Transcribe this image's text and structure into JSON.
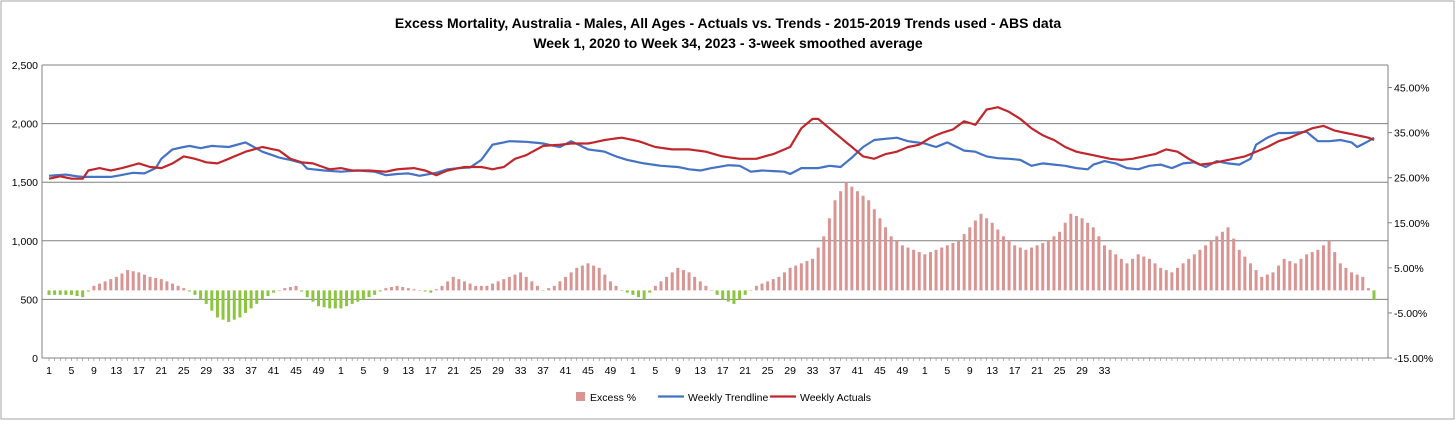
{
  "chart_data": {
    "type": "bar+line",
    "title_line1": "Excess Mortality, Australia - Males, All Ages - Actuals vs. Trends - 2015-2019 Trends used - ABS data",
    "title_line2": "Week 1, 2020 to Week 34, 2023 - 3-week smoothed average",
    "left_axis": {
      "min": 0,
      "max": 2500,
      "ticks": [
        "0",
        "500",
        "1,000",
        "1,500",
        "2,000",
        "2,500"
      ]
    },
    "right_axis": {
      "min": -15,
      "max": 50,
      "ticks": [
        "-15.00%",
        "-5.00%",
        "5.00%",
        "15.00%",
        "25.00%",
        "35.00%",
        "45.00%"
      ]
    },
    "x_tick_labels": [
      "1",
      "5",
      "9",
      "13",
      "17",
      "21",
      "25",
      "29",
      "33",
      "37",
      "41",
      "45",
      "49",
      "1",
      "5",
      "9",
      "13",
      "17",
      "21",
      "25",
      "29",
      "33",
      "37",
      "41",
      "45",
      "49",
      "1",
      "5",
      "9",
      "13",
      "17",
      "21",
      "25",
      "29",
      "33",
      "37",
      "41",
      "45",
      "49",
      "1",
      "5",
      "9",
      "13",
      "17",
      "21",
      "25",
      "29",
      "33"
    ],
    "x_tick_weeks": [
      1,
      5,
      9,
      13,
      17,
      21,
      25,
      29,
      33,
      37,
      41,
      45,
      49,
      53,
      57,
      61,
      65,
      69,
      73,
      77,
      81,
      85,
      89,
      93,
      97,
      101,
      105,
      109,
      113,
      117,
      121,
      125,
      129,
      133,
      137,
      141,
      145,
      149,
      153,
      157,
      161,
      165,
      169,
      173,
      177,
      181,
      185,
      189
    ],
    "legend": [
      {
        "label": "Excess %",
        "color": "#d99594",
        "kind": "bar"
      },
      {
        "label": "Weekly Trendline",
        "color": "#4472c4",
        "kind": "line"
      },
      {
        "label": "Weekly Actuals",
        "color": "#c0272d",
        "kind": "line"
      }
    ],
    "colors": {
      "excess_positive": "#d99594",
      "excess_negative": "#8cc53f",
      "trendline": "#4472c4",
      "actuals": "#c0272d",
      "grid": "#808080"
    },
    "trend_keypoints": [
      [
        1,
        1555
      ],
      [
        4,
        1565
      ],
      [
        6,
        1550
      ],
      [
        7,
        1545
      ],
      [
        10,
        1545
      ],
      [
        12,
        1545
      ],
      [
        16,
        1580
      ],
      [
        18,
        1575
      ],
      [
        20,
        1620
      ],
      [
        21,
        1700
      ],
      [
        23,
        1780
      ],
      [
        26,
        1810
      ],
      [
        28,
        1790
      ],
      [
        30,
        1810
      ],
      [
        33,
        1800
      ],
      [
        36,
        1840
      ],
      [
        39,
        1760
      ],
      [
        42,
        1710
      ],
      [
        44,
        1690
      ],
      [
        46,
        1665
      ],
      [
        47,
        1615
      ],
      [
        50,
        1600
      ],
      [
        53,
        1590
      ],
      [
        56,
        1600
      ],
      [
        59,
        1590
      ],
      [
        61,
        1560
      ],
      [
        63,
        1570
      ],
      [
        65,
        1575
      ],
      [
        67,
        1555
      ],
      [
        70,
        1580
      ],
      [
        72,
        1610
      ],
      [
        74,
        1620
      ],
      [
        76,
        1625
      ],
      [
        78,
        1690
      ],
      [
        80,
        1820
      ],
      [
        83,
        1850
      ],
      [
        86,
        1845
      ],
      [
        89,
        1830
      ],
      [
        92,
        1800
      ],
      [
        94,
        1850
      ],
      [
        97,
        1780
      ],
      [
        100,
        1760
      ],
      [
        102,
        1720
      ],
      [
        104,
        1690
      ],
      [
        107,
        1660
      ],
      [
        110,
        1640
      ],
      [
        113,
        1630
      ],
      [
        115,
        1610
      ],
      [
        117,
        1600
      ],
      [
        119,
        1620
      ],
      [
        122,
        1645
      ],
      [
        124,
        1640
      ],
      [
        126,
        1590
      ],
      [
        128,
        1600
      ],
      [
        132,
        1590
      ],
      [
        133,
        1570
      ],
      [
        135,
        1620
      ],
      [
        138,
        1620
      ],
      [
        140,
        1640
      ],
      [
        142,
        1630
      ],
      [
        144,
        1710
      ],
      [
        146,
        1800
      ],
      [
        148,
        1860
      ],
      [
        150,
        1870
      ],
      [
        152,
        1880
      ],
      [
        154,
        1850
      ],
      [
        157,
        1830
      ],
      [
        159,
        1800
      ],
      [
        161,
        1840
      ],
      [
        164,
        1770
      ],
      [
        166,
        1760
      ],
      [
        168,
        1720
      ],
      [
        170,
        1705
      ],
      [
        172,
        1700
      ],
      [
        174,
        1690
      ],
      [
        176,
        1640
      ],
      [
        178,
        1660
      ],
      [
        180,
        1650
      ],
      [
        182,
        1640
      ],
      [
        184,
        1620
      ],
      [
        186,
        1610
      ],
      [
        187,
        1650
      ],
      [
        189,
        1680
      ],
      [
        191,
        1660
      ],
      [
        193,
        1620
      ],
      [
        195,
        1610
      ],
      [
        197,
        1640
      ],
      [
        199,
        1650
      ],
      [
        201,
        1620
      ],
      [
        203,
        1660
      ],
      [
        205,
        1670
      ],
      [
        207,
        1630
      ],
      [
        209,
        1680
      ],
      [
        211,
        1660
      ],
      [
        213,
        1650
      ],
      [
        215,
        1700
      ],
      [
        216,
        1820
      ],
      [
        218,
        1880
      ],
      [
        220,
        1920
      ],
      [
        222,
        1920
      ],
      [
        225,
        1930
      ],
      [
        227,
        1850
      ],
      [
        229,
        1850
      ],
      [
        231,
        1860
      ],
      [
        233,
        1840
      ],
      [
        234,
        1800
      ],
      [
        236,
        1850
      ],
      [
        237,
        1880
      ]
    ],
    "actual_keypoints": [
      [
        1,
        1530
      ],
      [
        3,
        1550
      ],
      [
        5,
        1530
      ],
      [
        7,
        1530
      ],
      [
        8,
        1600
      ],
      [
        10,
        1620
      ],
      [
        12,
        1600
      ],
      [
        14,
        1620
      ],
      [
        17,
        1660
      ],
      [
        19,
        1630
      ],
      [
        21,
        1620
      ],
      [
        23,
        1660
      ],
      [
        25,
        1720
      ],
      [
        27,
        1700
      ],
      [
        29,
        1670
      ],
      [
        31,
        1660
      ],
      [
        33,
        1700
      ],
      [
        36,
        1760
      ],
      [
        39,
        1800
      ],
      [
        42,
        1770
      ],
      [
        44,
        1700
      ],
      [
        46,
        1670
      ],
      [
        48,
        1660
      ],
      [
        51,
        1610
      ],
      [
        53,
        1620
      ],
      [
        55,
        1600
      ],
      [
        58,
        1600
      ],
      [
        61,
        1590
      ],
      [
        63,
        1610
      ],
      [
        66,
        1620
      ],
      [
        68,
        1600
      ],
      [
        70,
        1560
      ],
      [
        72,
        1600
      ],
      [
        75,
        1630
      ],
      [
        78,
        1630
      ],
      [
        80,
        1610
      ],
      [
        82,
        1630
      ],
      [
        84,
        1700
      ],
      [
        86,
        1730
      ],
      [
        89,
        1810
      ],
      [
        92,
        1820
      ],
      [
        94,
        1830
      ],
      [
        97,
        1830
      ],
      [
        100,
        1860
      ],
      [
        103,
        1880
      ],
      [
        106,
        1850
      ],
      [
        109,
        1800
      ],
      [
        112,
        1780
      ],
      [
        115,
        1780
      ],
      [
        118,
        1760
      ],
      [
        121,
        1720
      ],
      [
        124,
        1700
      ],
      [
        127,
        1700
      ],
      [
        130,
        1740
      ],
      [
        133,
        1800
      ],
      [
        135,
        1960
      ],
      [
        137,
        2040
      ],
      [
        138,
        2040
      ],
      [
        140,
        1960
      ],
      [
        142,
        1880
      ],
      [
        144,
        1800
      ],
      [
        146,
        1720
      ],
      [
        148,
        1700
      ],
      [
        150,
        1740
      ],
      [
        152,
        1760
      ],
      [
        154,
        1800
      ],
      [
        156,
        1820
      ],
      [
        158,
        1880
      ],
      [
        160,
        1920
      ],
      [
        162,
        1950
      ],
      [
        164,
        2020
      ],
      [
        166,
        1990
      ],
      [
        168,
        2120
      ],
      [
        170,
        2140
      ],
      [
        172,
        2100
      ],
      [
        174,
        2040
      ],
      [
        176,
        1960
      ],
      [
        178,
        1900
      ],
      [
        180,
        1860
      ],
      [
        182,
        1800
      ],
      [
        184,
        1760
      ],
      [
        186,
        1740
      ],
      [
        188,
        1720
      ],
      [
        190,
        1700
      ],
      [
        192,
        1690
      ],
      [
        194,
        1700
      ],
      [
        196,
        1720
      ],
      [
        198,
        1740
      ],
      [
        200,
        1780
      ],
      [
        202,
        1760
      ],
      [
        204,
        1700
      ],
      [
        206,
        1650
      ],
      [
        208,
        1660
      ],
      [
        210,
        1680
      ],
      [
        212,
        1700
      ],
      [
        214,
        1720
      ],
      [
        216,
        1760
      ],
      [
        218,
        1800
      ],
      [
        220,
        1850
      ],
      [
        222,
        1880
      ],
      [
        224,
        1920
      ],
      [
        226,
        1960
      ],
      [
        228,
        1980
      ],
      [
        230,
        1940
      ],
      [
        232,
        1920
      ],
      [
        234,
        1900
      ],
      [
        236,
        1880
      ],
      [
        237,
        1860
      ]
    ],
    "excess_keypoints": [
      [
        1,
        -1
      ],
      [
        3,
        -1
      ],
      [
        5,
        -1
      ],
      [
        7,
        -1.5
      ],
      [
        9,
        1
      ],
      [
        11,
        2
      ],
      [
        13,
        3
      ],
      [
        15,
        4.5
      ],
      [
        17,
        4
      ],
      [
        19,
        3
      ],
      [
        21,
        2.5
      ],
      [
        23,
        1.5
      ],
      [
        25,
        0.5
      ],
      [
        27,
        -1
      ],
      [
        29,
        -3
      ],
      [
        31,
        -6
      ],
      [
        33,
        -7
      ],
      [
        35,
        -6
      ],
      [
        37,
        -4
      ],
      [
        39,
        -2
      ],
      [
        41,
        -0.5
      ],
      [
        43,
        0.5
      ],
      [
        45,
        1
      ],
      [
        47,
        -1.5
      ],
      [
        49,
        -3.5
      ],
      [
        51,
        -4
      ],
      [
        53,
        -4
      ],
      [
        55,
        -3
      ],
      [
        57,
        -2
      ],
      [
        59,
        -1
      ],
      [
        61,
        0.5
      ],
      [
        63,
        1
      ],
      [
        65,
        0.5
      ],
      [
        67,
        0
      ],
      [
        69,
        -0.5
      ],
      [
        71,
        1
      ],
      [
        73,
        3
      ],
      [
        75,
        2
      ],
      [
        77,
        1
      ],
      [
        79,
        1
      ],
      [
        81,
        2
      ],
      [
        83,
        3
      ],
      [
        85,
        4
      ],
      [
        87,
        2
      ],
      [
        89,
        0
      ],
      [
        91,
        1
      ],
      [
        93,
        3
      ],
      [
        95,
        5
      ],
      [
        97,
        6
      ],
      [
        99,
        5
      ],
      [
        101,
        2
      ],
      [
        103,
        0
      ],
      [
        105,
        -1
      ],
      [
        107,
        -2
      ],
      [
        109,
        1
      ],
      [
        111,
        3
      ],
      [
        113,
        5
      ],
      [
        115,
        4
      ],
      [
        117,
        2
      ],
      [
        119,
        0
      ],
      [
        121,
        -2
      ],
      [
        123,
        -3
      ],
      [
        125,
        -1
      ],
      [
        127,
        1
      ],
      [
        129,
        2
      ],
      [
        131,
        3
      ],
      [
        133,
        5
      ],
      [
        135,
        6
      ],
      [
        137,
        7
      ],
      [
        139,
        12
      ],
      [
        141,
        20
      ],
      [
        143,
        24
      ],
      [
        145,
        22
      ],
      [
        147,
        20
      ],
      [
        149,
        16
      ],
      [
        151,
        12
      ],
      [
        153,
        10
      ],
      [
        155,
        9
      ],
      [
        157,
        8
      ],
      [
        159,
        9
      ],
      [
        161,
        10
      ],
      [
        163,
        11
      ],
      [
        165,
        14
      ],
      [
        167,
        17
      ],
      [
        169,
        15
      ],
      [
        171,
        12
      ],
      [
        173,
        10
      ],
      [
        175,
        9
      ],
      [
        177,
        10
      ],
      [
        179,
        11
      ],
      [
        181,
        13
      ],
      [
        183,
        17
      ],
      [
        185,
        16
      ],
      [
        187,
        14
      ],
      [
        189,
        10
      ],
      [
        191,
        8
      ],
      [
        193,
        6
      ],
      [
        195,
        8
      ],
      [
        197,
        7
      ],
      [
        199,
        5
      ],
      [
        201,
        4
      ],
      [
        203,
        6
      ],
      [
        205,
        8
      ],
      [
        207,
        10
      ],
      [
        209,
        12
      ],
      [
        211,
        14
      ],
      [
        213,
        9
      ],
      [
        215,
        6
      ],
      [
        217,
        3
      ],
      [
        219,
        4
      ],
      [
        221,
        7
      ],
      [
        223,
        6
      ],
      [
        225,
        8
      ],
      [
        227,
        9
      ],
      [
        229,
        11
      ],
      [
        231,
        6
      ],
      [
        233,
        4
      ],
      [
        235,
        3
      ],
      [
        237,
        -2
      ]
    ]
  }
}
